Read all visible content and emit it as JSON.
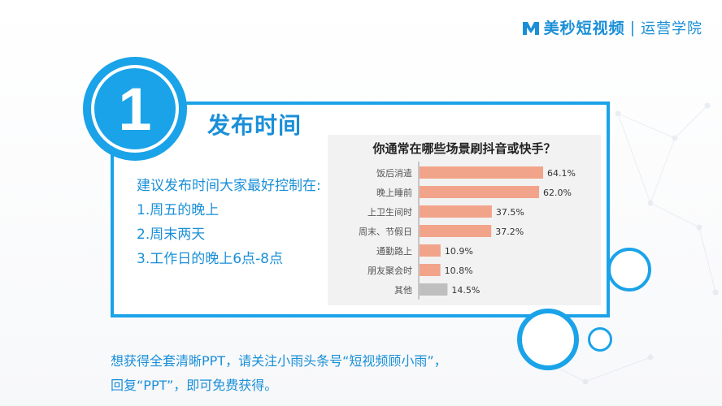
{
  "brand": {
    "name": "美秒短视频",
    "separator": "|",
    "subtitle": "运营学院",
    "color": "#1a8fd8"
  },
  "section": {
    "number": "1",
    "title": "发布时间"
  },
  "tips": {
    "intro": "建议发布时间大家最好控制在:",
    "items": [
      "1.周五的晚上",
      "2.周末两天",
      "3.工作日的晚上6点-8点"
    ]
  },
  "footer": {
    "line1": "想获得全套清晰PPT，请关注小雨头条号“短视频顾小雨”，",
    "line2": "回复“PPT”，即可免费获得。"
  },
  "colors": {
    "accent": "#1aa3e8",
    "bar": "#f2a48a",
    "bar_other": "#bfbfbf"
  },
  "chart_data": {
    "type": "bar",
    "orientation": "horizontal",
    "title": "你通常在哪些场景刷抖音或快手？",
    "categories": [
      "饭后消遣",
      "晚上睡前",
      "上卫生间时",
      "周末、节假日",
      "通勤路上",
      "朋友聚会时",
      "其他"
    ],
    "values": [
      64.1,
      62.0,
      37.5,
      37.2,
      10.9,
      10.8,
      14.5
    ],
    "labels": [
      "64.1%",
      "62.0%",
      "37.5%",
      "37.2%",
      "10.9%",
      "10.8%",
      "14.5%"
    ],
    "unit": "%",
    "xlim": [
      0,
      64.1
    ],
    "grid": false,
    "legend": "none"
  }
}
